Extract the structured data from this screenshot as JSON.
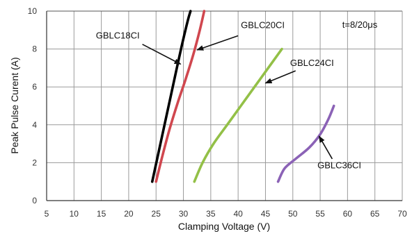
{
  "chart_data": {
    "type": "line",
    "xlabel": "Clamping Voltage (V)",
    "ylabel": "Peak Pulse Curent (A)",
    "xlim": [
      5,
      70
    ],
    "ylim": [
      0,
      10
    ],
    "xticks": [
      5,
      10,
      15,
      20,
      25,
      30,
      35,
      40,
      45,
      50,
      55,
      60,
      65,
      70
    ],
    "yticks": [
      0,
      2,
      4,
      6,
      8,
      10
    ],
    "grid": true,
    "annotations": [
      {
        "text": "t=8/20μs"
      }
    ],
    "series": [
      {
        "name": "GBLC18CI",
        "color": "#000000",
        "points": [
          [
            24.3,
            1.0
          ],
          [
            25.2,
            2.2
          ],
          [
            26.4,
            3.8
          ],
          [
            27.6,
            5.4
          ],
          [
            28.8,
            7.0
          ],
          [
            29.8,
            8.3
          ],
          [
            30.8,
            9.5
          ],
          [
            31.3,
            10.0
          ]
        ]
      },
      {
        "name": "GBLC20CI",
        "color": "#d0474f",
        "points": [
          [
            25.0,
            1.0
          ],
          [
            26.2,
            2.4
          ],
          [
            27.5,
            3.8
          ],
          [
            29.0,
            5.2
          ],
          [
            30.4,
            6.4
          ],
          [
            31.8,
            7.7
          ],
          [
            33.0,
            9.0
          ],
          [
            33.8,
            10.0
          ]
        ]
      },
      {
        "name": "GBLC24CI",
        "color": "#93c047",
        "points": [
          [
            32.0,
            1.0
          ],
          [
            33.5,
            2.0
          ],
          [
            35.5,
            3.0
          ],
          [
            38.0,
            4.0
          ],
          [
            40.5,
            5.0
          ],
          [
            43.0,
            6.0
          ],
          [
            45.5,
            7.0
          ],
          [
            48.0,
            8.0
          ]
        ]
      },
      {
        "name": "GBLC36CI",
        "color": "#8b62b6",
        "points": [
          [
            47.3,
            1.0
          ],
          [
            48.5,
            1.7
          ],
          [
            50.5,
            2.2
          ],
          [
            53.0,
            2.8
          ],
          [
            55.0,
            3.5
          ],
          [
            56.5,
            4.3
          ],
          [
            57.5,
            5.0
          ]
        ]
      }
    ],
    "labels": [
      {
        "text": "GBLC18CI",
        "series": 0
      },
      {
        "text": "GBLC20CI",
        "series": 1
      },
      {
        "text": "GBLC24CI",
        "series": 2
      },
      {
        "text": "GBLC36CI",
        "series": 3
      }
    ]
  }
}
